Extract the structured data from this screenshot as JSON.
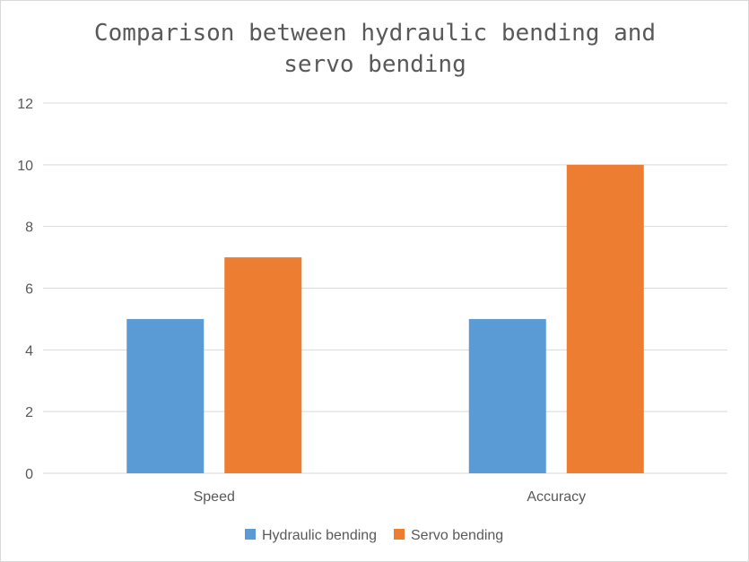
{
  "chart_data": {
    "type": "bar",
    "title_lines": [
      "Comparison between hydraulic bending and",
      "servo bending"
    ],
    "categories": [
      "Speed",
      "Accuracy"
    ],
    "series": [
      {
        "name": "Hydraulic bending",
        "values": [
          5,
          5
        ],
        "color": "#5b9bd5"
      },
      {
        "name": "Servo bending",
        "values": [
          7,
          10
        ],
        "color": "#ed7d31"
      }
    ],
    "ylim": [
      0,
      12
    ],
    "yticks": [
      0,
      2,
      4,
      6,
      8,
      10,
      12
    ],
    "grid": true,
    "legend_position": "bottom",
    "gridline_color": "#d9d9d9",
    "text_color": "#595959"
  }
}
